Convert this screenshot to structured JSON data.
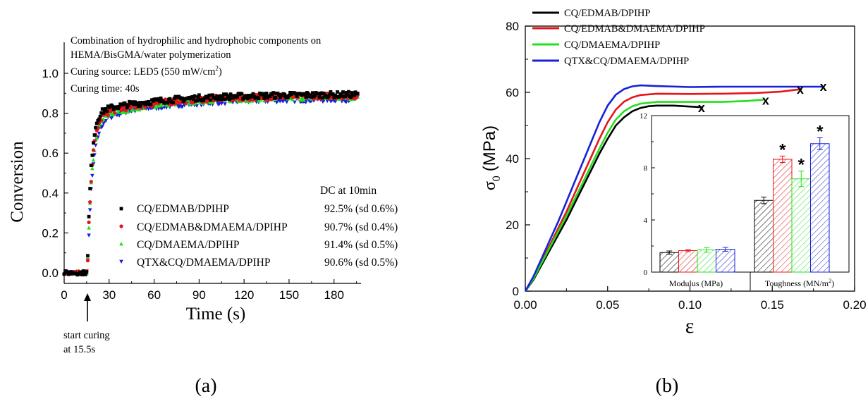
{
  "figure_labels": {
    "a": "(a)",
    "b": "(b)"
  },
  "colors": {
    "black": "#000000",
    "red": "#e8141b",
    "green": "#22e01c",
    "blue": "#1721d8"
  },
  "chart_data": [
    {
      "id": "panel-a",
      "type": "scatter",
      "title_lines": [
        "Combination of hydrophilic and hydrophobic components on",
        "HEMA/BisGMA/water polymerization"
      ],
      "info": {
        "curing_source_prefix": "Curing source: LED5 (550 mW/cm",
        "curing_source_sup": "2",
        "curing_source_suffix": ")",
        "curing_time": "Curing time: 40s"
      },
      "xlabel": "Time (s)",
      "ylabel": "Conversion",
      "xlim": [
        0,
        198
      ],
      "ylim": [
        -0.07,
        1.1
      ],
      "xticks": [
        0,
        30,
        60,
        90,
        120,
        150,
        180
      ],
      "yticks": [
        0.0,
        0.2,
        0.4,
        0.6,
        0.8,
        1.0
      ],
      "ytick_labels": [
        "0.0",
        "0.2",
        "0.4",
        "0.6",
        "0.8",
        "1.0"
      ],
      "annotation": {
        "lines": [
          "start curing",
          "at 15.5s"
        ],
        "x": 15.5
      },
      "legend_header": "DC at 10min",
      "series": [
        {
          "name": "CQ/EDMAB/DPIHP",
          "dc": "92.5% (sd 0.6%)",
          "color": "#000000",
          "marker": "square",
          "plateau": 0.895,
          "k": 0.42,
          "fast": 0.8
        },
        {
          "name": "CQ/EDMAB&DMAEMA/DPIHP",
          "dc": "90.7% (sd 0.4%)",
          "color": "#e8141b",
          "marker": "circle",
          "plateau": 0.89,
          "k": 0.36,
          "fast": 0.78
        },
        {
          "name": "CQ/DMAEMA/DPIHP",
          "dc": "91.4% (sd 0.5%)",
          "color": "#22e01c",
          "marker": "triangle-up",
          "plateau": 0.885,
          "k": 0.33,
          "fast": 0.77
        },
        {
          "name": "QTX&CQ/DMAEMA/DPIHP",
          "dc": "90.6% (sd 0.5%)",
          "color": "#1721d8",
          "marker": "triangle-down",
          "plateau": 0.875,
          "k": 0.3,
          "fast": 0.76
        }
      ]
    },
    {
      "id": "panel-b",
      "type": "line",
      "xlabel": "ε",
      "ylabel_main": "σ",
      "ylabel_sub": "0",
      "ylabel_unit": "(MPa)",
      "xlim": [
        0,
        0.2
      ],
      "ylim": [
        0,
        80
      ],
      "xticks": [
        0.0,
        0.05,
        0.1,
        0.15,
        0.2
      ],
      "xtick_labels": [
        "0.00",
        "0.05",
        "0.10",
        "0.15",
        "0.20"
      ],
      "yticks": [
        0,
        20,
        40,
        60,
        80
      ],
      "failure_marker": "x",
      "series": [
        {
          "name": "CQ/EDMAB/DPIHP",
          "color": "#000000",
          "points": [
            [
              0,
              0
            ],
            [
              0.005,
              3.5
            ],
            [
              0.01,
              8
            ],
            [
              0.015,
              12.5
            ],
            [
              0.02,
              17
            ],
            [
              0.025,
              21.5
            ],
            [
              0.03,
              26.5
            ],
            [
              0.035,
              31.5
            ],
            [
              0.04,
              36.5
            ],
            [
              0.045,
              41.5
            ],
            [
              0.05,
              46
            ],
            [
              0.055,
              50
            ],
            [
              0.06,
              52.5
            ],
            [
              0.065,
              54.3
            ],
            [
              0.07,
              55.3
            ],
            [
              0.075,
              55.8
            ],
            [
              0.08,
              56
            ],
            [
              0.09,
              56
            ],
            [
              0.1,
              55.7
            ],
            [
              0.108,
              55.5
            ]
          ],
          "failure": [
            0.107,
            55.3
          ]
        },
        {
          "name": "CQ/EDMAB&DMAEMA/DPIHP",
          "color": "#e8141b",
          "points": [
            [
              0,
              0
            ],
            [
              0.005,
              4
            ],
            [
              0.01,
              9
            ],
            [
              0.015,
              14
            ],
            [
              0.02,
              19
            ],
            [
              0.025,
              24
            ],
            [
              0.03,
              29.5
            ],
            [
              0.035,
              35
            ],
            [
              0.04,
              40.5
            ],
            [
              0.045,
              46
            ],
            [
              0.05,
              51
            ],
            [
              0.055,
              54.8
            ],
            [
              0.06,
              57.2
            ],
            [
              0.065,
              58.5
            ],
            [
              0.07,
              59.2
            ],
            [
              0.08,
              59.6
            ],
            [
              0.1,
              59.5
            ],
            [
              0.12,
              59.6
            ],
            [
              0.14,
              59.8
            ],
            [
              0.155,
              60.2
            ],
            [
              0.168,
              61
            ]
          ],
          "failure": [
            0.167,
            60.8
          ]
        },
        {
          "name": "CQ/DMAEMA/DPIHP",
          "color": "#22e01c",
          "points": [
            [
              0,
              0
            ],
            [
              0.005,
              3.8
            ],
            [
              0.01,
              8.6
            ],
            [
              0.015,
              13.3
            ],
            [
              0.02,
              18
            ],
            [
              0.025,
              22.8
            ],
            [
              0.03,
              27.8
            ],
            [
              0.035,
              32.8
            ],
            [
              0.04,
              38
            ],
            [
              0.045,
              43
            ],
            [
              0.05,
              47.8
            ],
            [
              0.055,
              51.8
            ],
            [
              0.06,
              54.3
            ],
            [
              0.065,
              55.8
            ],
            [
              0.07,
              56.6
            ],
            [
              0.08,
              57.1
            ],
            [
              0.1,
              57.1
            ],
            [
              0.12,
              57.1
            ],
            [
              0.135,
              57.4
            ],
            [
              0.145,
              57.8
            ]
          ],
          "failure": [
            0.146,
            57.6
          ]
        },
        {
          "name": "QTX&CQ/DMAEMA/DPIHP",
          "color": "#1721d8",
          "points": [
            [
              0,
              0
            ],
            [
              0.005,
              4.5
            ],
            [
              0.01,
              10
            ],
            [
              0.015,
              15.5
            ],
            [
              0.02,
              21
            ],
            [
              0.025,
              27
            ],
            [
              0.03,
              33
            ],
            [
              0.035,
              39
            ],
            [
              0.04,
              45
            ],
            [
              0.045,
              51
            ],
            [
              0.05,
              56
            ],
            [
              0.055,
              59.3
            ],
            [
              0.06,
              61
            ],
            [
              0.065,
              61.8
            ],
            [
              0.07,
              62.1
            ],
            [
              0.08,
              61.9
            ],
            [
              0.1,
              61.6
            ],
            [
              0.12,
              61.7
            ],
            [
              0.15,
              61.7
            ],
            [
              0.181,
              61.7
            ]
          ],
          "failure": [
            0.181,
            61.7
          ]
        }
      ]
    },
    {
      "id": "panel-b-inset",
      "type": "bar",
      "categories": [
        "Modulus (MPa)",
        "Toughness (MN/m2)"
      ],
      "category_labels": [
        {
          "text": "Modulus (MPa)",
          "sup": ""
        },
        {
          "text": "Toughness (MN/m",
          "sup": "2",
          "suffix": ")"
        }
      ],
      "ylim": [
        0,
        12
      ],
      "yticks": [
        0,
        4,
        8,
        12
      ],
      "significance_marker": "*",
      "series": [
        {
          "name": "CQ/EDMAB/DPIHP",
          "color": "#000000",
          "values": [
            1.5,
            5.5
          ],
          "errors": [
            0.12,
            0.25
          ],
          "significant": [
            false,
            false
          ]
        },
        {
          "name": "CQ/EDMAB&DMAEMA/DPIHP",
          "color": "#e8141b",
          "values": [
            1.65,
            8.65
          ],
          "errors": [
            0.08,
            0.25
          ],
          "significant": [
            false,
            true
          ]
        },
        {
          "name": "CQ/DMAEMA/DPIHP",
          "color": "#22e01c",
          "values": [
            1.7,
            7.15
          ],
          "errors": [
            0.18,
            0.6
          ],
          "significant": [
            false,
            true
          ]
        },
        {
          "name": "QTX&CQ/DMAEMA/DPIHP",
          "color": "#1721d8",
          "values": [
            1.75,
            9.85
          ],
          "errors": [
            0.15,
            0.45
          ],
          "significant": [
            false,
            true
          ]
        }
      ]
    }
  ]
}
